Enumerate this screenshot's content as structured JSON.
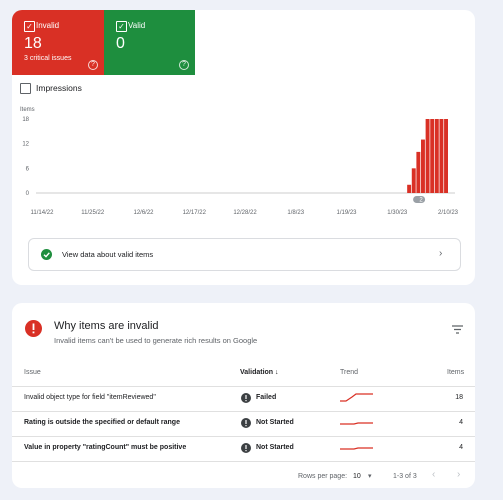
{
  "summary": {
    "invalid": {
      "label": "Invalid",
      "count": "18",
      "note": "3 critical issues"
    },
    "valid": {
      "label": "Valid",
      "count": "0"
    }
  },
  "impressions_label": "Impressions",
  "chart_data": {
    "type": "bar",
    "y_label": "Items",
    "x": [
      80,
      81,
      82,
      83,
      84,
      85,
      86,
      87,
      88
    ],
    "values": [
      2,
      6,
      10,
      13,
      18,
      18,
      18,
      18,
      18
    ],
    "color": "#d93025",
    "xlim": [
      0,
      88
    ],
    "xticks": [
      {
        "value": 0,
        "label": "11/14/22"
      },
      {
        "value": 11,
        "label": "11/25/22"
      },
      {
        "value": 22,
        "label": "12/6/22"
      },
      {
        "value": 33,
        "label": "12/17/22"
      },
      {
        "value": 44,
        "label": "12/28/22"
      },
      {
        "value": 55,
        "label": "1/8/23"
      },
      {
        "value": 66,
        "label": "1/19/23"
      },
      {
        "value": 77,
        "label": "1/30/23"
      },
      {
        "value": 88,
        "label": "2/10/23"
      }
    ],
    "ylim": [
      0,
      18
    ],
    "yticks": [
      0,
      6,
      12,
      18
    ],
    "grid": false,
    "annotation": "2"
  },
  "valid_link": "View data about valid items",
  "issues": {
    "title": "Why items are invalid",
    "subtitle": "Invalid items can't be used to generate rich results on Google",
    "headers": [
      "Issue",
      "Validation",
      "Trend",
      "Items"
    ],
    "rows": [
      [
        "Invalid object type for field \"itemReviewed\"",
        "Failed",
        "18"
      ],
      [
        "Rating is outside the specified or default range",
        "Not Started",
        "4"
      ],
      [
        "Value in property \"ratingCount\" must be positive",
        "Not Started",
        "4"
      ]
    ],
    "footer": {
      "rows_per_page_label": "Rows per page:",
      "rows_per_page": "10",
      "range": "1-3 of 3"
    }
  }
}
